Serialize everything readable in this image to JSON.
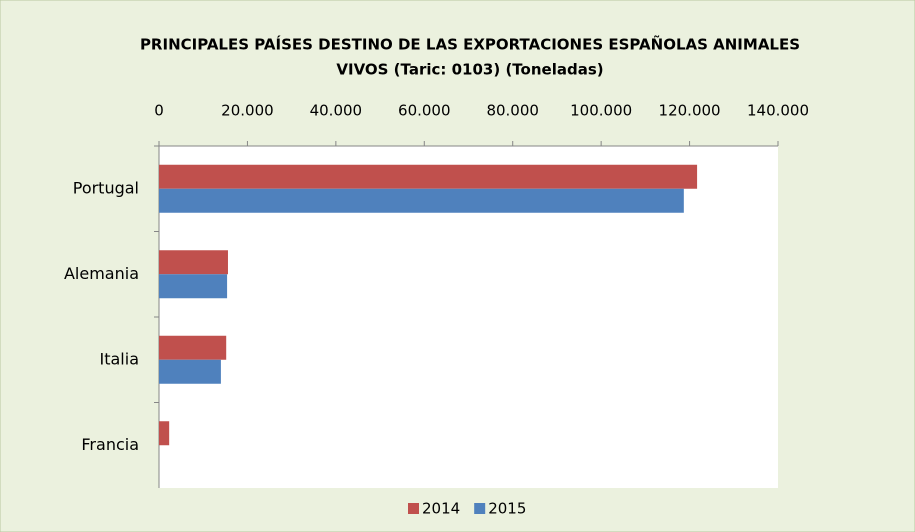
{
  "chart_data": {
    "type": "hbar",
    "title": [
      "PRINCIPALES PAÍSES DESTINO DE LAS EXPORTACIONES ESPAÑOLAS ANIMALES",
      "VIVOS (Taric: 0103) (Toneladas)"
    ],
    "categories": [
      "Portugal",
      "Alemania",
      "Italia",
      "Francia"
    ],
    "series": [
      {
        "name": "2014",
        "color": "#c0504d",
        "values": [
          121700,
          15600,
          15200,
          2300
        ]
      },
      {
        "name": "2015",
        "color": "#4f81bd",
        "values": [
          118700,
          15400,
          14000,
          0
        ]
      }
    ],
    "xlim": [
      0,
      140000
    ],
    "xticks": [
      0,
      {
        "value": 20000,
        "label": "20.000"
      },
      {
        "value": 40000,
        "label": "40.000"
      },
      {
        "value": 60000,
        "label": "60.000"
      },
      {
        "value": 80000,
        "label": "80.000"
      },
      {
        "value": 100000,
        "label": "100.000"
      },
      {
        "value": 120000,
        "label": "120.000"
      },
      {
        "value": 140000,
        "label": "140.000"
      }
    ],
    "grid": false,
    "legend": "bottom"
  }
}
